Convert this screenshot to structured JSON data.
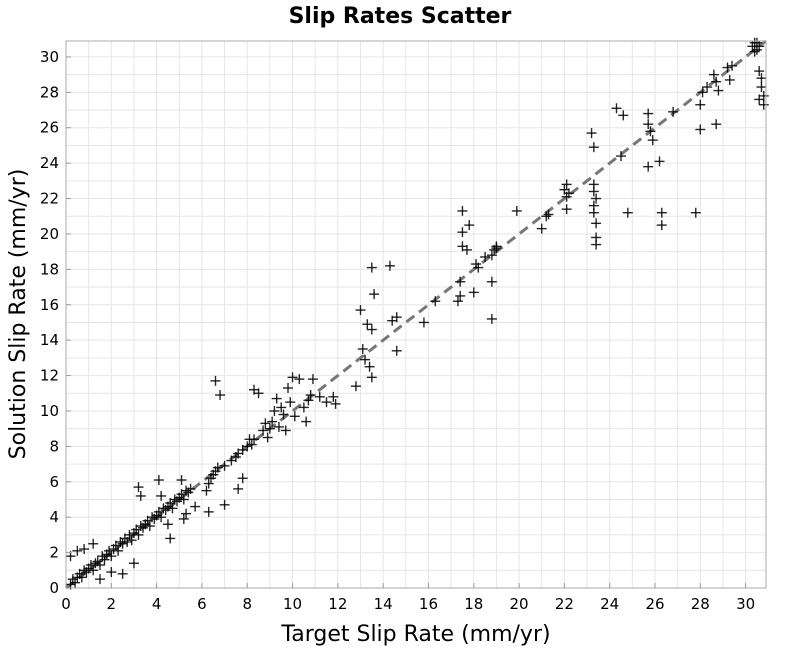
{
  "chart_data": {
    "type": "scatter",
    "title": "Slip Rates Scatter",
    "xlabel": "Target Slip Rate (mm/yr)",
    "ylabel": "Solution Slip Rate (mm/yr)",
    "xlim": [
      0,
      30.9
    ],
    "ylim": [
      0,
      30.9
    ],
    "xticks": [
      0,
      2,
      4,
      6,
      8,
      10,
      12,
      14,
      16,
      18,
      20,
      22,
      24,
      26,
      28,
      30
    ],
    "yticks": [
      0,
      2,
      4,
      6,
      8,
      10,
      12,
      14,
      16,
      18,
      20,
      22,
      24,
      26,
      28,
      30
    ],
    "grid": true,
    "marker": "plus",
    "marker_color": "#000000",
    "reference_line": {
      "style": "dashed",
      "color": "#777777",
      "from": [
        0,
        0
      ],
      "to": [
        30.9,
        30.9
      ]
    },
    "points": [
      [
        0.2,
        0.2
      ],
      [
        0.3,
        0.5
      ],
      [
        0.4,
        0.3
      ],
      [
        0.5,
        0.6
      ],
      [
        0.6,
        0.8
      ],
      [
        0.7,
        0.6
      ],
      [
        0.8,
        1.0
      ],
      [
        0.9,
        0.9
      ],
      [
        1.0,
        1.1
      ],
      [
        1.1,
        1.3
      ],
      [
        1.2,
        1.0
      ],
      [
        1.3,
        1.4
      ],
      [
        1.4,
        1.5
      ],
      [
        1.5,
        1.3
      ],
      [
        1.6,
        1.8
      ],
      [
        1.7,
        1.6
      ],
      [
        1.8,
        1.9
      ],
      [
        1.9,
        2.1
      ],
      [
        2.0,
        1.8
      ],
      [
        2.1,
        2.2
      ],
      [
        2.2,
        2.4
      ],
      [
        2.3,
        2.1
      ],
      [
        2.4,
        2.6
      ],
      [
        2.5,
        2.5
      ],
      [
        2.6,
        2.8
      ],
      [
        2.7,
        2.6
      ],
      [
        2.8,
        3.0
      ],
      [
        2.9,
        2.7
      ],
      [
        3.0,
        3.1
      ],
      [
        3.1,
        3.3
      ],
      [
        3.2,
        3.0
      ],
      [
        3.3,
        3.5
      ],
      [
        3.4,
        3.4
      ],
      [
        3.5,
        3.6
      ],
      [
        3.6,
        3.8
      ],
      [
        3.7,
        3.5
      ],
      [
        3.8,
        4.0
      ],
      [
        3.9,
        3.9
      ],
      [
        4.0,
        4.1
      ],
      [
        4.1,
        4.3
      ],
      [
        4.2,
        4.0
      ],
      [
        4.3,
        4.5
      ],
      [
        4.4,
        4.4
      ],
      [
        4.5,
        4.6
      ],
      [
        4.6,
        4.8
      ],
      [
        4.7,
        4.5
      ],
      [
        4.8,
        5.0
      ],
      [
        4.9,
        4.9
      ],
      [
        5.0,
        5.1
      ],
      [
        5.1,
        5.3
      ],
      [
        5.2,
        5.0
      ],
      [
        5.3,
        5.5
      ],
      [
        5.4,
        5.4
      ],
      [
        5.5,
        5.6
      ],
      [
        0.2,
        1.8
      ],
      [
        0.5,
        2.1
      ],
      [
        0.8,
        2.2
      ],
      [
        1.2,
        2.5
      ],
      [
        1.5,
        0.5
      ],
      [
        2.0,
        0.9
      ],
      [
        2.5,
        0.8
      ],
      [
        3.0,
        1.4
      ],
      [
        3.2,
        5.7
      ],
      [
        3.3,
        5.2
      ],
      [
        4.1,
        6.1
      ],
      [
        4.2,
        5.2
      ],
      [
        4.5,
        3.6
      ],
      [
        4.6,
        2.8
      ],
      [
        5.2,
        3.9
      ],
      [
        5.3,
        4.2
      ],
      [
        5.1,
        6.1
      ],
      [
        5.7,
        4.6
      ],
      [
        6.3,
        4.3
      ],
      [
        6.2,
        5.5
      ],
      [
        6.3,
        5.9
      ],
      [
        6.4,
        6.2
      ],
      [
        6.5,
        6.4
      ],
      [
        6.6,
        6.6
      ],
      [
        6.7,
        6.8
      ],
      [
        6.6,
        11.7
      ],
      [
        6.8,
        10.9
      ],
      [
        7.0,
        4.7
      ],
      [
        7.0,
        6.9
      ],
      [
        7.3,
        7.2
      ],
      [
        7.5,
        7.4
      ],
      [
        7.6,
        7.6
      ],
      [
        7.8,
        7.8
      ],
      [
        8.0,
        8.0
      ],
      [
        8.2,
        8.1
      ],
      [
        8.3,
        8.4
      ],
      [
        7.6,
        5.6
      ],
      [
        7.8,
        6.2
      ],
      [
        8.1,
        8.4
      ],
      [
        8.3,
        11.2
      ],
      [
        8.5,
        11.0
      ],
      [
        8.7,
        8.9
      ],
      [
        8.8,
        9.3
      ],
      [
        8.9,
        8.5
      ],
      [
        9.0,
        9.0
      ],
      [
        9.1,
        9.4
      ],
      [
        9.2,
        10.0
      ],
      [
        9.3,
        10.7
      ],
      [
        9.4,
        9.1
      ],
      [
        9.5,
        10.2
      ],
      [
        9.6,
        9.8
      ],
      [
        9.7,
        8.9
      ],
      [
        9.8,
        11.3
      ],
      [
        9.9,
        10.5
      ],
      [
        10.0,
        11.9
      ],
      [
        10.1,
        9.7
      ],
      [
        10.3,
        11.8
      ],
      [
        10.5,
        10.2
      ],
      [
        10.6,
        9.4
      ],
      [
        10.7,
        10.6
      ],
      [
        10.8,
        10.9
      ],
      [
        10.9,
        11.8
      ],
      [
        11.2,
        10.8
      ],
      [
        11.5,
        10.5
      ],
      [
        11.8,
        10.8
      ],
      [
        11.9,
        10.4
      ],
      [
        12.8,
        11.4
      ],
      [
        13.0,
        15.7
      ],
      [
        13.1,
        13.5
      ],
      [
        13.2,
        12.9
      ],
      [
        13.3,
        14.9
      ],
      [
        13.5,
        18.1
      ],
      [
        13.5,
        14.6
      ],
      [
        13.6,
        16.6
      ],
      [
        13.4,
        12.5
      ],
      [
        13.5,
        11.9
      ],
      [
        14.3,
        18.2
      ],
      [
        14.4,
        15.1
      ],
      [
        14.6,
        15.3
      ],
      [
        14.6,
        13.4
      ],
      [
        15.8,
        15.0
      ],
      [
        16.3,
        16.2
      ],
      [
        17.3,
        16.2
      ],
      [
        17.4,
        16.5
      ],
      [
        17.4,
        17.3
      ],
      [
        17.5,
        21.3
      ],
      [
        17.5,
        20.1
      ],
      [
        17.5,
        19.3
      ],
      [
        17.7,
        19.1
      ],
      [
        17.8,
        20.5
      ],
      [
        18.0,
        16.7
      ],
      [
        18.1,
        18.3
      ],
      [
        18.2,
        18.1
      ],
      [
        18.5,
        18.7
      ],
      [
        18.8,
        15.2
      ],
      [
        18.8,
        17.3
      ],
      [
        18.8,
        18.8
      ],
      [
        18.9,
        19.1
      ],
      [
        19.0,
        19.2
      ],
      [
        19.0,
        19.3
      ],
      [
        19.9,
        21.3
      ],
      [
        21.0,
        20.3
      ],
      [
        21.2,
        21.0
      ],
      [
        21.3,
        21.1
      ],
      [
        22.0,
        22.5
      ],
      [
        22.1,
        22.8
      ],
      [
        22.1,
        22.1
      ],
      [
        22.2,
        22.3
      ],
      [
        22.1,
        21.4
      ],
      [
        23.2,
        25.7
      ],
      [
        23.3,
        24.9
      ],
      [
        23.3,
        22.8
      ],
      [
        23.3,
        22.4
      ],
      [
        23.4,
        22.0
      ],
      [
        23.3,
        21.6
      ],
      [
        23.3,
        21.2
      ],
      [
        23.4,
        20.6
      ],
      [
        23.4,
        19.4
      ],
      [
        23.4,
        19.8
      ],
      [
        24.3,
        27.1
      ],
      [
        24.5,
        24.4
      ],
      [
        24.6,
        26.7
      ],
      [
        24.8,
        21.2
      ],
      [
        25.7,
        26.8
      ],
      [
        25.7,
        26.2
      ],
      [
        25.8,
        25.8
      ],
      [
        25.9,
        25.3
      ],
      [
        25.7,
        23.8
      ],
      [
        26.2,
        24.1
      ],
      [
        26.3,
        21.2
      ],
      [
        26.3,
        20.5
      ],
      [
        26.8,
        26.9
      ],
      [
        27.8,
        21.2
      ],
      [
        28.0,
        25.9
      ],
      [
        28.0,
        27.3
      ],
      [
        28.1,
        28.0
      ],
      [
        28.3,
        28.3
      ],
      [
        28.6,
        29.0
      ],
      [
        28.7,
        28.6
      ],
      [
        28.7,
        26.2
      ],
      [
        28.8,
        28.1
      ],
      [
        29.2,
        29.4
      ],
      [
        29.3,
        28.7
      ],
      [
        29.4,
        29.5
      ],
      [
        30.3,
        30.6
      ],
      [
        30.4,
        30.3
      ],
      [
        30.5,
        30.8
      ],
      [
        30.6,
        29.2
      ],
      [
        30.7,
        28.8
      ],
      [
        30.7,
        28.3
      ],
      [
        30.8,
        27.8
      ],
      [
        30.8,
        27.3
      ],
      [
        30.6,
        27.6
      ],
      [
        30.5,
        30.4
      ],
      [
        30.4,
        30.8
      ],
      [
        30.6,
        30.6
      ]
    ]
  }
}
